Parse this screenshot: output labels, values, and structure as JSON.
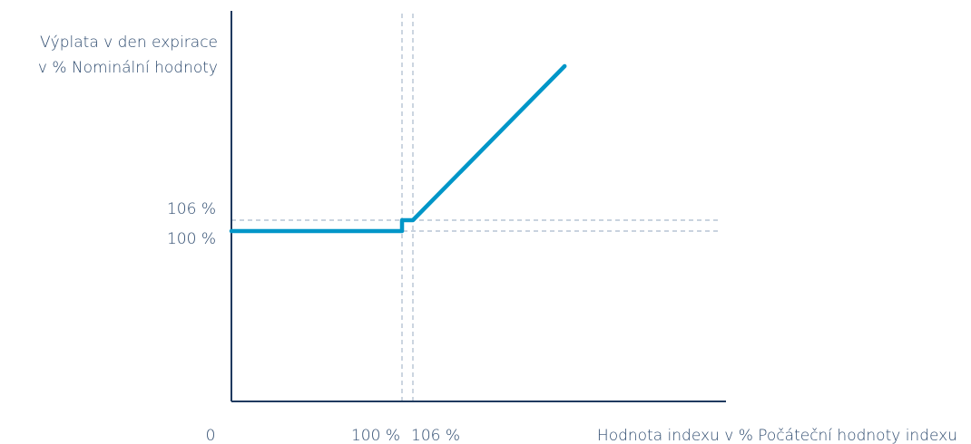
{
  "chart_data": {
    "type": "line",
    "ylabel_lines": [
      "Výplata v den expirace",
      "v % Nominální hodnoty"
    ],
    "xlabel": "Hodnota indexu v % Počáteční hodnoty indexu",
    "x_ticks": [
      {
        "value": 0,
        "label": "0"
      },
      {
        "value": 100,
        "label": "100 %"
      },
      {
        "value": 106,
        "label": "106 %"
      }
    ],
    "y_ticks": [
      {
        "value": 106,
        "label": "106 %"
      },
      {
        "value": 100,
        "label": "100 %"
      }
    ],
    "reference_lines": {
      "x": [
        100,
        106
      ],
      "y": [
        100,
        106
      ]
    },
    "xlim": [
      0,
      300
    ],
    "ylim": [
      0,
      200
    ],
    "series": [
      {
        "values": [
          {
            "x": 0,
            "y": 100
          },
          {
            "x": 100,
            "y": 100
          },
          {
            "x": 100,
            "y": 106
          },
          {
            "x": 106,
            "y": 106
          },
          {
            "x": 200,
            "y": 200
          }
        ]
      }
    ],
    "colors": {
      "line": "#0096c8",
      "axis": "#1f3a5f",
      "reference": "#a9b9cc",
      "text": "#2d4a6e"
    }
  }
}
